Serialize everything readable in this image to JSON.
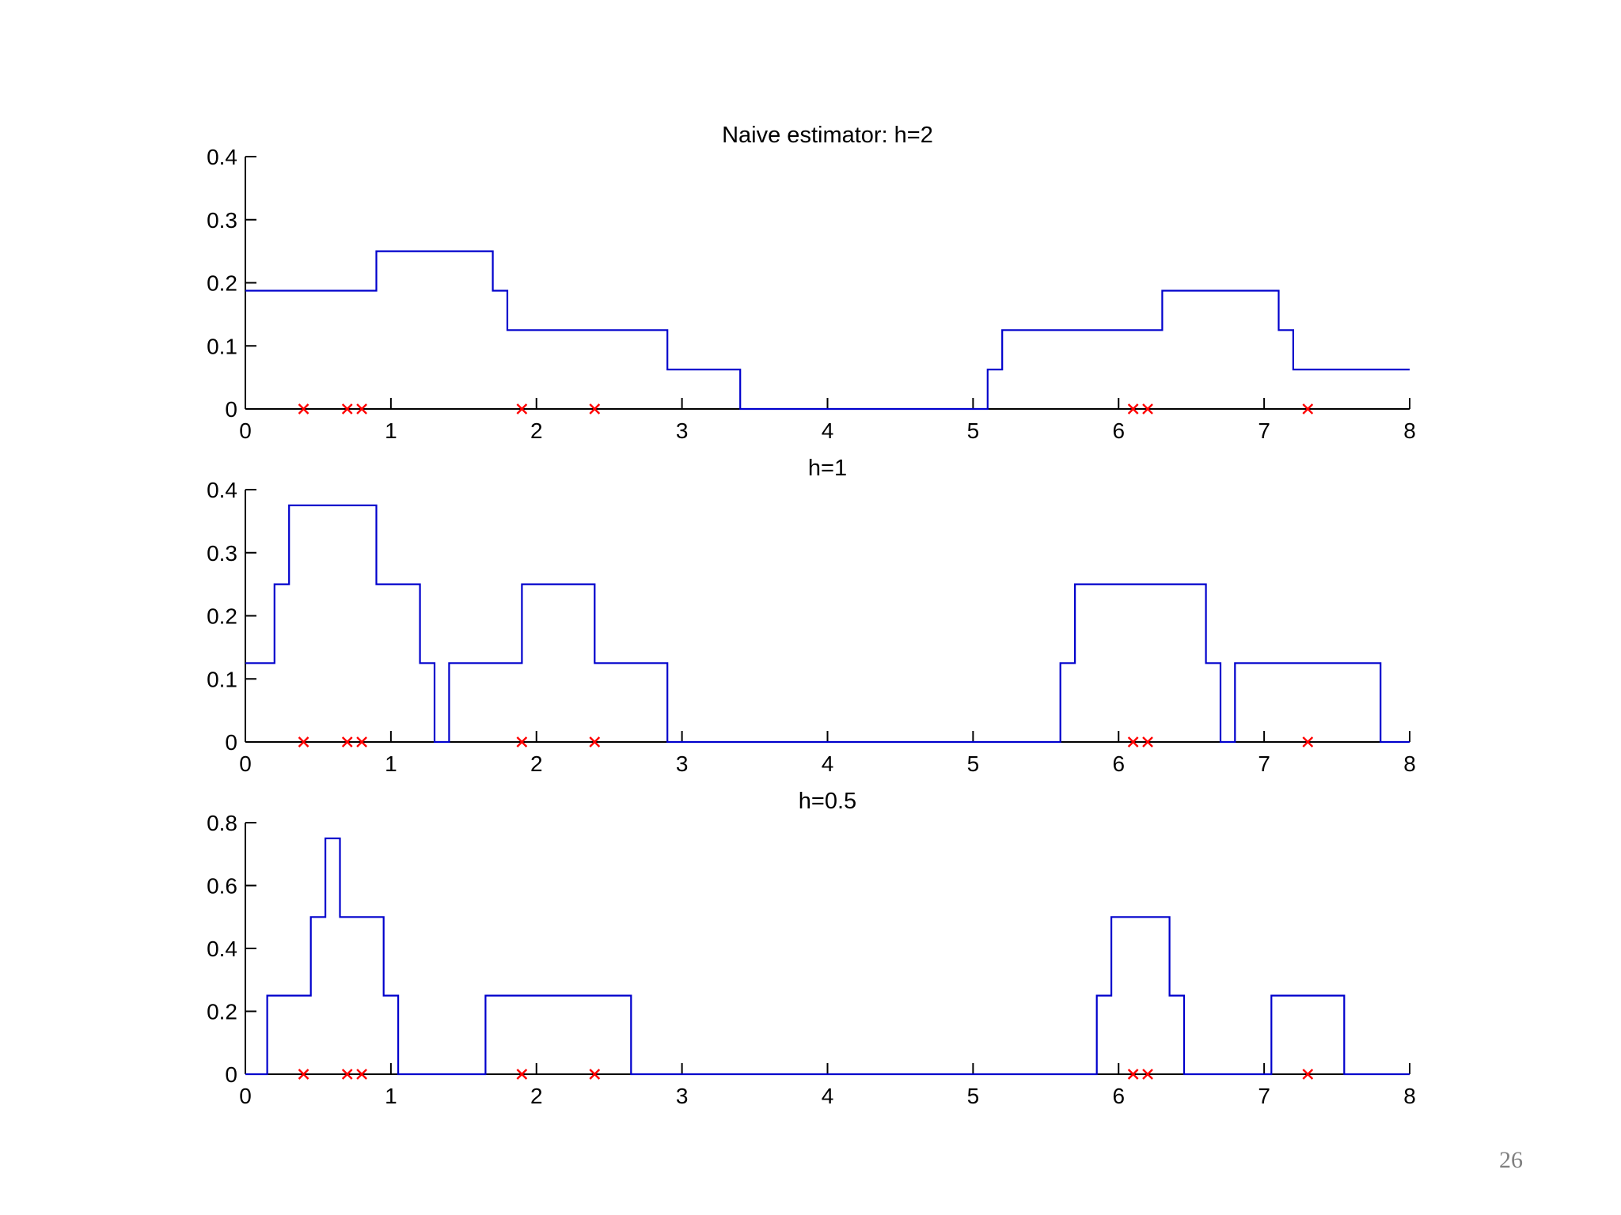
{
  "page_number": "26",
  "chart_data": [
    {
      "type": "line",
      "title": "Naive estimator: h=2",
      "xlabel": "",
      "ylabel": "",
      "xlim": [
        0,
        8
      ],
      "ylim": [
        0,
        0.4
      ],
      "xticks": [
        0,
        1,
        2,
        3,
        4,
        5,
        6,
        7,
        8
      ],
      "yticks": [
        0,
        0.1,
        0.2,
        0.3,
        0.4
      ],
      "ytick_labels": [
        "0",
        "0.1",
        "0.2",
        "0.3",
        "0.4"
      ],
      "grid": false,
      "line_color": "#0000cc",
      "marker_color": "#ff0000",
      "samples": [
        0.4,
        0.7,
        0.8,
        1.9,
        2.4,
        6.1,
        6.2,
        7.3
      ],
      "series": [
        {
          "step": true,
          "x": [
            0,
            0.9,
            0.9,
            1.7,
            1.7,
            1.8,
            1.8,
            2.9,
            2.9,
            3.4,
            3.4,
            5.1,
            5.1,
            5.2,
            5.2,
            6.3,
            6.3,
            7.1,
            7.1,
            7.2,
            7.2,
            8
          ],
          "y": [
            0.1875,
            0.1875,
            0.25,
            0.25,
            0.1875,
            0.1875,
            0.125,
            0.125,
            0.0625,
            0.0625,
            0,
            0,
            0.0625,
            0.0625,
            0.125,
            0.125,
            0.1875,
            0.1875,
            0.125,
            0.125,
            0.0625,
            0.0625
          ]
        }
      ]
    },
    {
      "type": "line",
      "title": "h=1",
      "xlabel": "",
      "ylabel": "",
      "xlim": [
        0,
        8
      ],
      "ylim": [
        0,
        0.4
      ],
      "xticks": [
        0,
        1,
        2,
        3,
        4,
        5,
        6,
        7,
        8
      ],
      "yticks": [
        0,
        0.1,
        0.2,
        0.3,
        0.4
      ],
      "ytick_labels": [
        "0",
        "0.1",
        "0.2",
        "0.3",
        "0.4"
      ],
      "grid": false,
      "line_color": "#0000cc",
      "marker_color": "#ff0000",
      "samples": [
        0.4,
        0.7,
        0.8,
        1.9,
        2.4,
        6.1,
        6.2,
        7.3
      ],
      "series": [
        {
          "step": true,
          "x": [
            0,
            0.2,
            0.2,
            0.3,
            0.3,
            0.9,
            0.9,
            1.2,
            1.2,
            1.3,
            1.3,
            1.4,
            1.4,
            1.9,
            1.9,
            2.4,
            2.4,
            2.9,
            2.9,
            5.6,
            5.6,
            5.7,
            5.7,
            6.6,
            6.6,
            6.7,
            6.7,
            6.8,
            6.8,
            7.8,
            7.8,
            8
          ],
          "y": [
            0.125,
            0.125,
            0.25,
            0.25,
            0.375,
            0.375,
            0.25,
            0.25,
            0.125,
            0.125,
            0,
            0,
            0.125,
            0.125,
            0.25,
            0.25,
            0.125,
            0.125,
            0,
            0,
            0.125,
            0.125,
            0.25,
            0.25,
            0.125,
            0.125,
            0,
            0,
            0.125,
            0.125,
            0,
            0
          ]
        }
      ]
    },
    {
      "type": "line",
      "title": "h=0.5",
      "xlabel": "",
      "ylabel": "",
      "xlim": [
        0,
        8
      ],
      "ylim": [
        0,
        0.8
      ],
      "xticks": [
        0,
        1,
        2,
        3,
        4,
        5,
        6,
        7,
        8
      ],
      "yticks": [
        0,
        0.2,
        0.4,
        0.6,
        0.8
      ],
      "ytick_labels": [
        "0",
        "0.2",
        "0.4",
        "0.6",
        "0.8"
      ],
      "grid": false,
      "line_color": "#0000cc",
      "marker_color": "#ff0000",
      "samples": [
        0.4,
        0.7,
        0.8,
        1.9,
        2.4,
        6.1,
        6.2,
        7.3
      ],
      "series": [
        {
          "step": true,
          "x": [
            0,
            0.15,
            0.15,
            0.45,
            0.45,
            0.55,
            0.55,
            0.65,
            0.65,
            0.95,
            0.95,
            1.05,
            1.05,
            1.65,
            1.65,
            2.15,
            2.15,
            2.65,
            2.65,
            5.85,
            5.85,
            5.95,
            5.95,
            6.35,
            6.35,
            6.45,
            6.45,
            7.05,
            7.05,
            7.55,
            7.55,
            8
          ],
          "y": [
            0,
            0,
            0.25,
            0.25,
            0.5,
            0.5,
            0.75,
            0.75,
            0.5,
            0.5,
            0.25,
            0.25,
            0,
            0,
            0.25,
            0.25,
            0.25,
            0.25,
            0,
            0,
            0.25,
            0.25,
            0.5,
            0.5,
            0.25,
            0.25,
            0,
            0,
            0.25,
            0.25,
            0,
            0
          ]
        }
      ]
    }
  ]
}
